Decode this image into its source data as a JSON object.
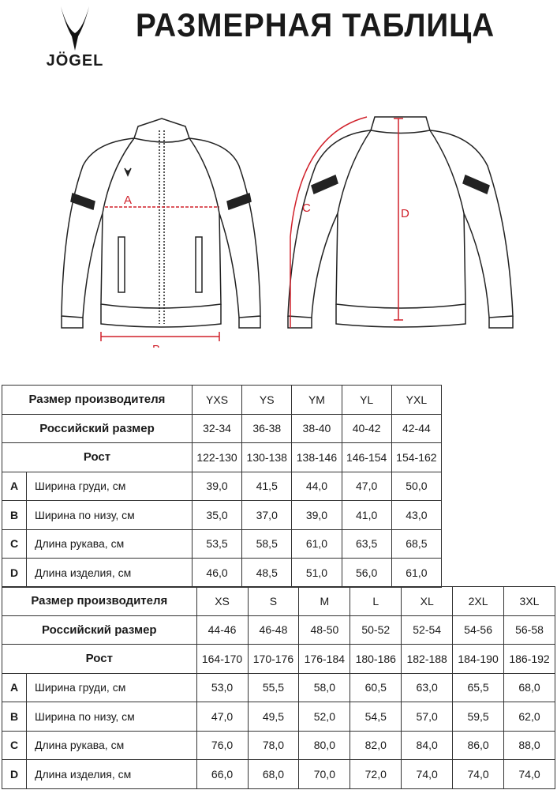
{
  "header": {
    "logo_text": "JÖGEL",
    "title": "РАЗМЕРНАЯ ТАБЛИЦА"
  },
  "diagram": {
    "labels": {
      "a": "A",
      "b": "B",
      "c": "C",
      "d": "D"
    },
    "measure_color": "#d0202a"
  },
  "tables": [
    {
      "row_labels": {
        "maker": "Размер производителя",
        "russian": "Российский размер",
        "height": "Рост"
      },
      "sizes": [
        "YXS",
        "YS",
        "YM",
        "YL",
        "YXL"
      ],
      "russian": [
        "32-34",
        "36-38",
        "38-40",
        "40-42",
        "42-44"
      ],
      "height": [
        "122-130",
        "130-138",
        "138-146",
        "146-154",
        "154-162"
      ],
      "measures": [
        {
          "letter": "A",
          "label": "Ширина груди, см",
          "values": [
            "39,0",
            "41,5",
            "44,0",
            "47,0",
            "50,0"
          ]
        },
        {
          "letter": "B",
          "label": "Ширина по низу, см",
          "values": [
            "35,0",
            "37,0",
            "39,0",
            "41,0",
            "43,0"
          ]
        },
        {
          "letter": "C",
          "label": "Длина рукава, см",
          "values": [
            "53,5",
            "58,5",
            "61,0",
            "63,5",
            "68,5"
          ]
        },
        {
          "letter": "D",
          "label": "Длина изделия, см",
          "values": [
            "46,0",
            "48,5",
            "51,0",
            "56,0",
            "61,0"
          ]
        }
      ]
    },
    {
      "row_labels": {
        "maker": "Размер производителя",
        "russian": "Российский размер",
        "height": "Рост"
      },
      "sizes": [
        "XS",
        "S",
        "M",
        "L",
        "XL",
        "2XL",
        "3XL"
      ],
      "russian": [
        "44-46",
        "46-48",
        "48-50",
        "50-52",
        "52-54",
        "54-56",
        "56-58"
      ],
      "height": [
        "164-170",
        "170-176",
        "176-184",
        "180-186",
        "182-188",
        "184-190",
        "186-192"
      ],
      "measures": [
        {
          "letter": "A",
          "label": "Ширина груди, см",
          "values": [
            "53,0",
            "55,5",
            "58,0",
            "60,5",
            "63,0",
            "65,5",
            "68,0"
          ]
        },
        {
          "letter": "B",
          "label": "Ширина по низу, см",
          "values": [
            "47,0",
            "49,5",
            "52,0",
            "54,5",
            "57,0",
            "59,5",
            "62,0"
          ]
        },
        {
          "letter": "C",
          "label": "Длина рукава, см",
          "values": [
            "76,0",
            "78,0",
            "80,0",
            "82,0",
            "84,0",
            "86,0",
            "88,0"
          ]
        },
        {
          "letter": "D",
          "label": "Длина изделия, см",
          "values": [
            "66,0",
            "68,0",
            "70,0",
            "72,0",
            "74,0",
            "74,0",
            "74,0"
          ]
        }
      ]
    }
  ]
}
